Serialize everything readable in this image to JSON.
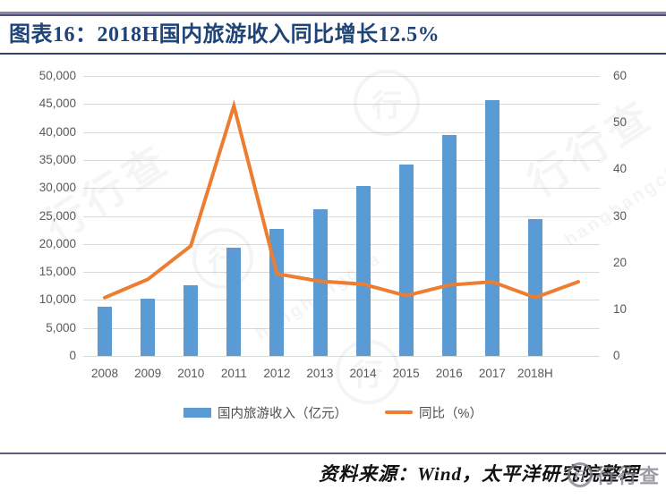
{
  "title": {
    "text": "图表16：2018H国内旅游收入同比增长12.5%"
  },
  "footer": {
    "source_text": "资料来源：Wind，太平洋研究院整理"
  },
  "watermark": {
    "cn": "行行查",
    "en": "hanghangcha",
    "logo_glyph": "行"
  },
  "legend": {
    "bar_label": "国内旅游收入（亿元）",
    "line_label": "同比（%）"
  },
  "chart_data": {
    "type": "bar+line",
    "title": "图表16：2018H国内旅游收入同比增长12.5%",
    "categories": [
      "2008",
      "2009",
      "2010",
      "2011",
      "2012",
      "2013",
      "2014",
      "2015",
      "2016",
      "2017",
      "2018H",
      ""
    ],
    "series": [
      {
        "name": "国内旅游收入（亿元）",
        "type": "bar",
        "axis": "left",
        "color": "#5B9BD5",
        "values": [
          8749,
          10184,
          12580,
          19306,
          22706,
          26276,
          30312,
          34195,
          39390,
          45661,
          24500,
          null
        ]
      },
      {
        "name": "同比（%）",
        "type": "line",
        "axis": "right",
        "color": "#ED7D31",
        "values": [
          12.5,
          16.4,
          23.6,
          53.6,
          17.6,
          16.0,
          15.4,
          12.9,
          15.2,
          15.9,
          12.5,
          15.9
        ]
      }
    ],
    "left_axis": {
      "min": 0,
      "max": 50000,
      "step": 5000,
      "tick_labels": [
        "0",
        "5,000",
        "10,000",
        "15,000",
        "20,000",
        "25,000",
        "30,000",
        "35,000",
        "40,000",
        "45,000",
        "50,000"
      ]
    },
    "right_axis": {
      "min": 0,
      "max": 60,
      "step": 10,
      "tick_labels": [
        "0",
        "10",
        "20",
        "30",
        "40",
        "50",
        "60"
      ]
    },
    "grid": "horizontal",
    "legend_position": "bottom"
  }
}
